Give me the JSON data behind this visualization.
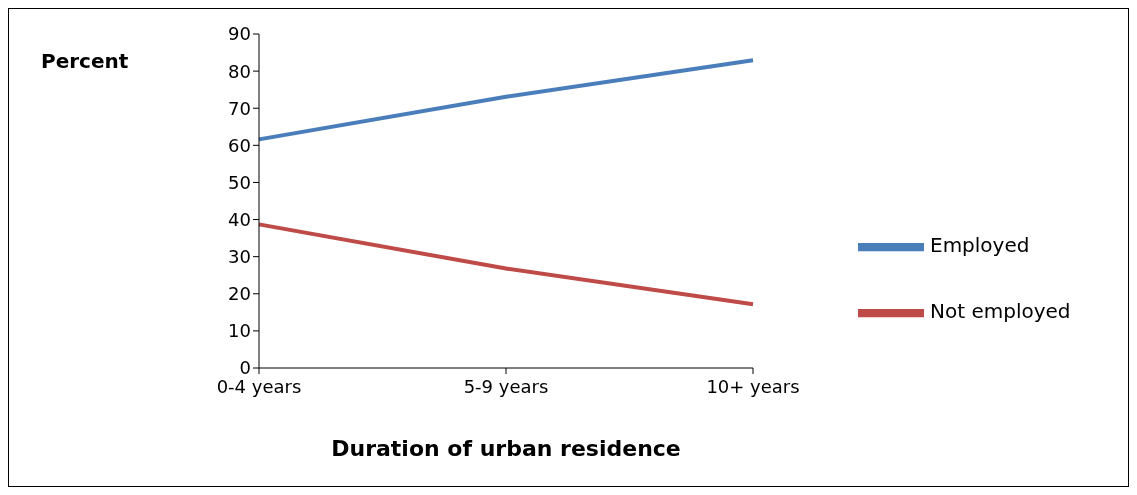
{
  "chart_data": {
    "type": "line",
    "ylabel": "Percent",
    "xlabel": "Duration of urban residence",
    "categories": [
      "0-4 years",
      "5-9 years",
      "10+ years"
    ],
    "series": [
      {
        "name": "Employed",
        "color": "#4a7ebb",
        "values": [
          61.6,
          73.1,
          82.9
        ]
      },
      {
        "name": "Not employed",
        "color": "#be4b48",
        "values": [
          38.7,
          26.8,
          17.2
        ]
      }
    ],
    "ylim": [
      0,
      90
    ],
    "yticks": [
      0,
      10,
      20,
      30,
      40,
      50,
      60,
      70,
      80,
      90
    ],
    "grid": false,
    "legend": "right",
    "marker": "none",
    "line_style": "solid"
  }
}
